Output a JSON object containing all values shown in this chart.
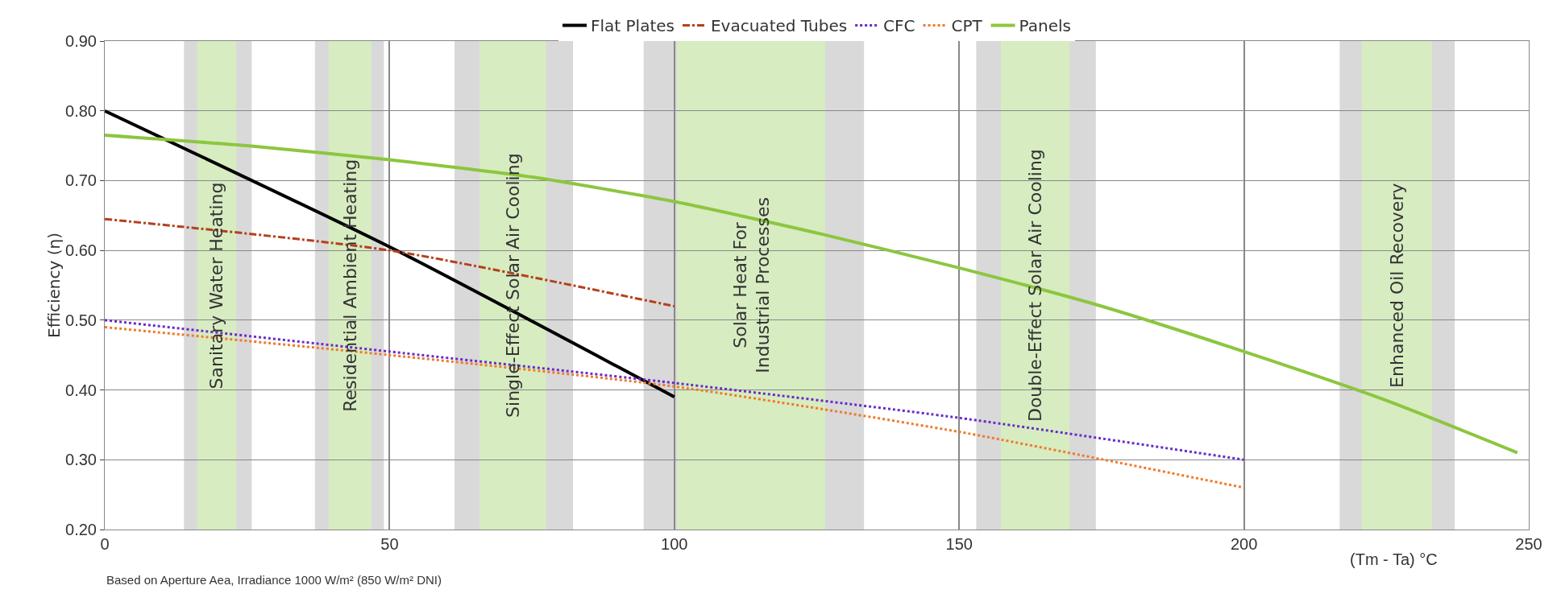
{
  "chart_data": {
    "type": "line",
    "xlabel": "(Tm - Ta) °C",
    "ylabel": "Efficiency (η)",
    "annotations": [
      "Based on Aperture Aea, Irradiance 1000 W/m² (850 W/m² DNI)"
    ],
    "xlim": [
      0,
      250
    ],
    "xticks": [
      0,
      50,
      100,
      150,
      200,
      250
    ],
    "ylim": [
      0.2,
      0.9
    ],
    "yticks": [
      {
        "value": 0.2,
        "label": "0.20"
      },
      {
        "value": 0.3,
        "label": "0.30"
      },
      {
        "value": 0.4,
        "label": "0.40"
      },
      {
        "value": 0.5,
        "label": "0.50"
      },
      {
        "value": 0.6,
        "label": "0.60"
      },
      {
        "value": 0.7,
        "label": "0.70"
      },
      {
        "value": 0.8,
        "label": "0.80"
      },
      {
        "value": 0.9,
        "label": "0.90"
      }
    ],
    "grid": true,
    "legend": "top",
    "series": [
      {
        "name": "Flat Plates",
        "color": "#000000",
        "line_style": "solid",
        "x": [
          0,
          50,
          100
        ],
        "values": [
          0.8,
          0.605,
          0.39
        ]
      },
      {
        "name": "Evacuated Tubes",
        "color": "#b5401c",
        "line_style": "dashdot",
        "x": [
          0,
          50,
          100
        ],
        "values": [
          0.645,
          0.6,
          0.52
        ]
      },
      {
        "name": "CFC",
        "color": "#6a2cc8",
        "line_style": "dotted",
        "x": [
          0,
          50,
          100,
          150,
          200
        ],
        "values": [
          0.5,
          0.455,
          0.41,
          0.36,
          0.3
        ]
      },
      {
        "name": "CPT",
        "color": "#f07a2a",
        "line_style": "dotted",
        "x": [
          0,
          50,
          100,
          150,
          200
        ],
        "values": [
          0.49,
          0.45,
          0.405,
          0.34,
          0.26
        ]
      },
      {
        "name": "Panels",
        "color": "#8cc63f",
        "line_style": "solid",
        "x": [
          0,
          25,
          50,
          75,
          100,
          125,
          150,
          175,
          200,
          225,
          248
        ],
        "values": [
          0.765,
          0.75,
          0.73,
          0.705,
          0.67,
          0.625,
          0.575,
          0.52,
          0.455,
          0.385,
          0.31
        ]
      }
    ],
    "bands": [
      {
        "axis": "x",
        "from": 13.9,
        "to": 25.8,
        "color": "#d9d9d9"
      },
      {
        "axis": "x",
        "from": 16.2,
        "to": 23.1,
        "color": "#d7ecc1",
        "label": "Sanitary Water Heating"
      },
      {
        "axis": "x",
        "from": 36.9,
        "to": 49,
        "color": "#d9d9d9"
      },
      {
        "axis": "x",
        "from": 39.3,
        "to": 46.8,
        "color": "#d7ecc1",
        "label": "Residential Ambient Heating"
      },
      {
        "axis": "x",
        "from": 61.4,
        "to": 82.2,
        "color": "#d9d9d9"
      },
      {
        "axis": "x",
        "from": 65.8,
        "to": 77.5,
        "color": "#d7ecc1",
        "label": "Single-Effect Solar Air Cooling"
      },
      {
        "axis": "x",
        "from": 94.6,
        "to": 133.3,
        "color": "#d9d9d9"
      },
      {
        "axis": "x",
        "from": 100.5,
        "to": 126.5,
        "color": "#d7ecc1",
        "label": "Solar Heat For\nIndustrial Processes"
      },
      {
        "axis": "x",
        "from": 153,
        "to": 174,
        "color": "#d9d9d9"
      },
      {
        "axis": "x",
        "from": 157.3,
        "to": 169.4,
        "color": "#d7ecc1",
        "label": "Double-Effect Solar Air Cooling"
      },
      {
        "axis": "x",
        "from": 216.8,
        "to": 237,
        "color": "#d9d9d9"
      },
      {
        "axis": "x",
        "from": 220.7,
        "to": 233,
        "color": "#d7ecc1",
        "label": "Enhanced Oil Recovery"
      }
    ]
  }
}
